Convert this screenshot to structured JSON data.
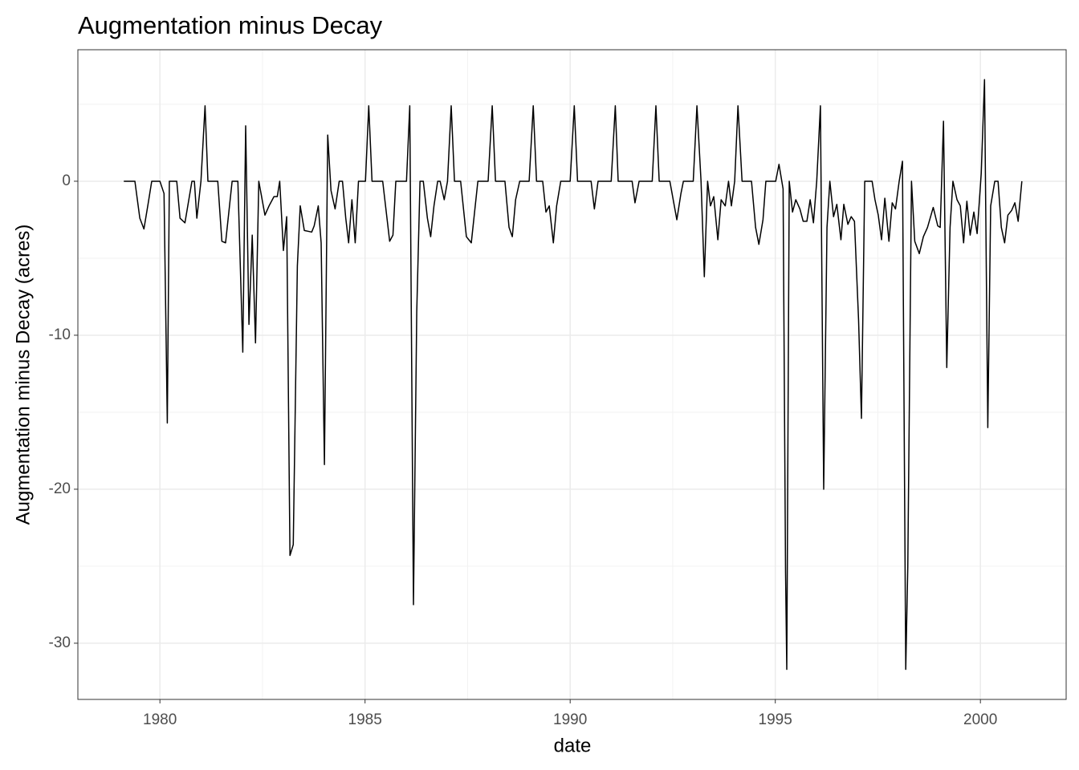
{
  "chart_data": {
    "type": "line",
    "title": "Augmentation minus Decay",
    "x_label": "date",
    "y_label": "Augmentation minus Decay (acres)",
    "color": "#000000",
    "grid": true,
    "xlim": [
      1978.0,
      2002.09
    ],
    "ylim": [
      -33.65,
      8.54
    ],
    "xticks": [
      1980,
      1985,
      1990,
      1995,
      2000
    ],
    "yticks": [
      -30,
      -20,
      -10,
      0
    ],
    "x": [
      1979.12,
      1979.39,
      1979.51,
      1979.61,
      1979.71,
      1979.8,
      1980.0,
      1980.1,
      1980.18,
      1980.23,
      1980.41,
      1980.49,
      1980.61,
      1980.78,
      1980.84,
      1980.9,
      1981.0,
      1981.1,
      1981.17,
      1981.41,
      1981.51,
      1981.6,
      1981.76,
      1981.9,
      1982.02,
      1982.09,
      1982.17,
      1982.25,
      1982.33,
      1982.41,
      1982.56,
      1982.66,
      1982.78,
      1982.86,
      1982.92,
      1983.01,
      1983.09,
      1983.17,
      1983.25,
      1983.35,
      1983.42,
      1983.52,
      1983.7,
      1983.76,
      1983.86,
      1983.93,
      1984.01,
      1984.09,
      1984.17,
      1984.27,
      1984.37,
      1984.45,
      1984.53,
      1984.6,
      1984.68,
      1984.76,
      1984.84,
      1985.01,
      1985.09,
      1985.17,
      1985.43,
      1985.6,
      1985.68,
      1985.75,
      1986.01,
      1986.09,
      1986.18,
      1986.26,
      1986.34,
      1986.42,
      1986.52,
      1986.6,
      1986.68,
      1986.77,
      1986.83,
      1986.93,
      1987.01,
      1987.1,
      1987.18,
      1987.33,
      1987.47,
      1987.59,
      1987.75,
      1988.0,
      1988.1,
      1988.18,
      1988.41,
      1988.51,
      1988.59,
      1988.67,
      1988.77,
      1989.0,
      1989.1,
      1989.18,
      1989.33,
      1989.41,
      1989.49,
      1989.59,
      1989.67,
      1989.77,
      1990.0,
      1990.1,
      1990.18,
      1990.51,
      1990.59,
      1990.68,
      1991.0,
      1991.1,
      1991.17,
      1991.51,
      1991.58,
      1991.68,
      1992.0,
      1992.09,
      1992.17,
      1992.43,
      1992.6,
      1992.7,
      1992.76,
      1993.0,
      1993.09,
      1993.19,
      1993.27,
      1993.35,
      1993.42,
      1993.5,
      1993.6,
      1993.68,
      1993.78,
      1993.86,
      1993.93,
      1994.01,
      1994.09,
      1994.19,
      1994.42,
      1994.52,
      1994.6,
      1994.7,
      1994.77,
      1995.01,
      1995.09,
      1995.19,
      1995.25,
      1995.28,
      1995.34,
      1995.42,
      1995.5,
      1995.6,
      1995.68,
      1995.77,
      1995.85,
      1995.93,
      1996.01,
      1996.1,
      1996.18,
      1996.26,
      1996.33,
      1996.42,
      1996.5,
      1996.6,
      1996.67,
      1996.77,
      1996.85,
      1996.93,
      1997.03,
      1997.1,
      1997.18,
      1997.36,
      1997.43,
      1997.51,
      1997.59,
      1997.67,
      1997.77,
      1997.85,
      1997.93,
      1998.02,
      1998.1,
      1998.18,
      1998.23,
      1998.32,
      1998.4,
      1998.51,
      1998.61,
      1998.71,
      1998.85,
      1998.96,
      1999.02,
      1999.1,
      1999.18,
      1999.26,
      1999.33,
      1999.43,
      1999.51,
      1999.59,
      1999.67,
      1999.75,
      1999.84,
      1999.92,
      2000.02,
      2000.1,
      2000.18,
      2000.25,
      2000.35,
      2000.43,
      2000.51,
      2000.59,
      2000.67,
      2000.76,
      2000.84,
      2000.92,
      2001.01
    ],
    "values": [
      0,
      0,
      -2.4,
      -3.1,
      -1.5,
      0,
      0,
      -0.8,
      -15.7,
      0,
      0,
      -2.4,
      -2.7,
      0,
      0,
      -2.4,
      0,
      4.9,
      0,
      0,
      -3.9,
      -4.0,
      0,
      0,
      -11.1,
      3.6,
      -9.3,
      -3.5,
      -10.5,
      0,
      -2.2,
      -1.6,
      -1.0,
      -1.0,
      0,
      -4.5,
      -2.3,
      -24.3,
      -23.6,
      -5.5,
      -1.6,
      -3.2,
      -3.3,
      -2.9,
      -1.6,
      -4.0,
      -18.4,
      3.0,
      -0.6,
      -1.8,
      0,
      0,
      -2.4,
      -4.0,
      -1.2,
      -4.0,
      0,
      0,
      4.9,
      0,
      0,
      -3.9,
      -3.5,
      0,
      0,
      4.9,
      -27.5,
      -8.5,
      0,
      0,
      -2.4,
      -3.6,
      -1.6,
      0,
      0,
      -1.2,
      0,
      4.9,
      0,
      0,
      -3.6,
      -4.0,
      0,
      0,
      4.9,
      0,
      0,
      -3.0,
      -3.6,
      -1.2,
      0,
      0,
      4.9,
      0,
      0,
      -2.0,
      -1.6,
      -4.0,
      -1.6,
      0,
      0,
      4.9,
      0,
      0,
      -1.8,
      0,
      0,
      4.9,
      0,
      0,
      -1.4,
      0,
      0,
      4.9,
      0,
      0,
      -2.5,
      -0.8,
      0,
      0,
      4.9,
      0,
      -6.2,
      0,
      -1.6,
      -1.0,
      -3.8,
      -1.2,
      -1.6,
      0,
      -1.6,
      0,
      4.9,
      0,
      0,
      -3.0,
      -4.1,
      -2.5,
      0,
      0,
      1.1,
      -0.5,
      -25.4,
      -31.7,
      0,
      -2.0,
      -1.2,
      -1.8,
      -2.6,
      -2.6,
      -1.2,
      -2.7,
      0,
      4.9,
      -20.0,
      -3.0,
      0,
      -2.3,
      -1.5,
      -3.8,
      -1.5,
      -2.8,
      -2.3,
      -2.6,
      -9.0,
      -15.4,
      0,
      0,
      -1.2,
      -2.2,
      -3.8,
      -1.1,
      -3.9,
      -1.4,
      -1.8,
      0,
      1.3,
      -31.7,
      -25.0,
      0,
      -3.9,
      -4.7,
      -3.6,
      -3.0,
      -1.7,
      -2.9,
      -3.0,
      3.9,
      -12.1,
      -3.0,
      0,
      -1.2,
      -1.6,
      -4.0,
      -1.3,
      -3.5,
      -2.0,
      -3.4,
      0.5,
      6.6,
      -16.0,
      -1.6,
      0,
      0,
      -3.0,
      -4.0,
      -2.2,
      -1.9,
      -1.4,
      -2.6,
      0
    ]
  }
}
